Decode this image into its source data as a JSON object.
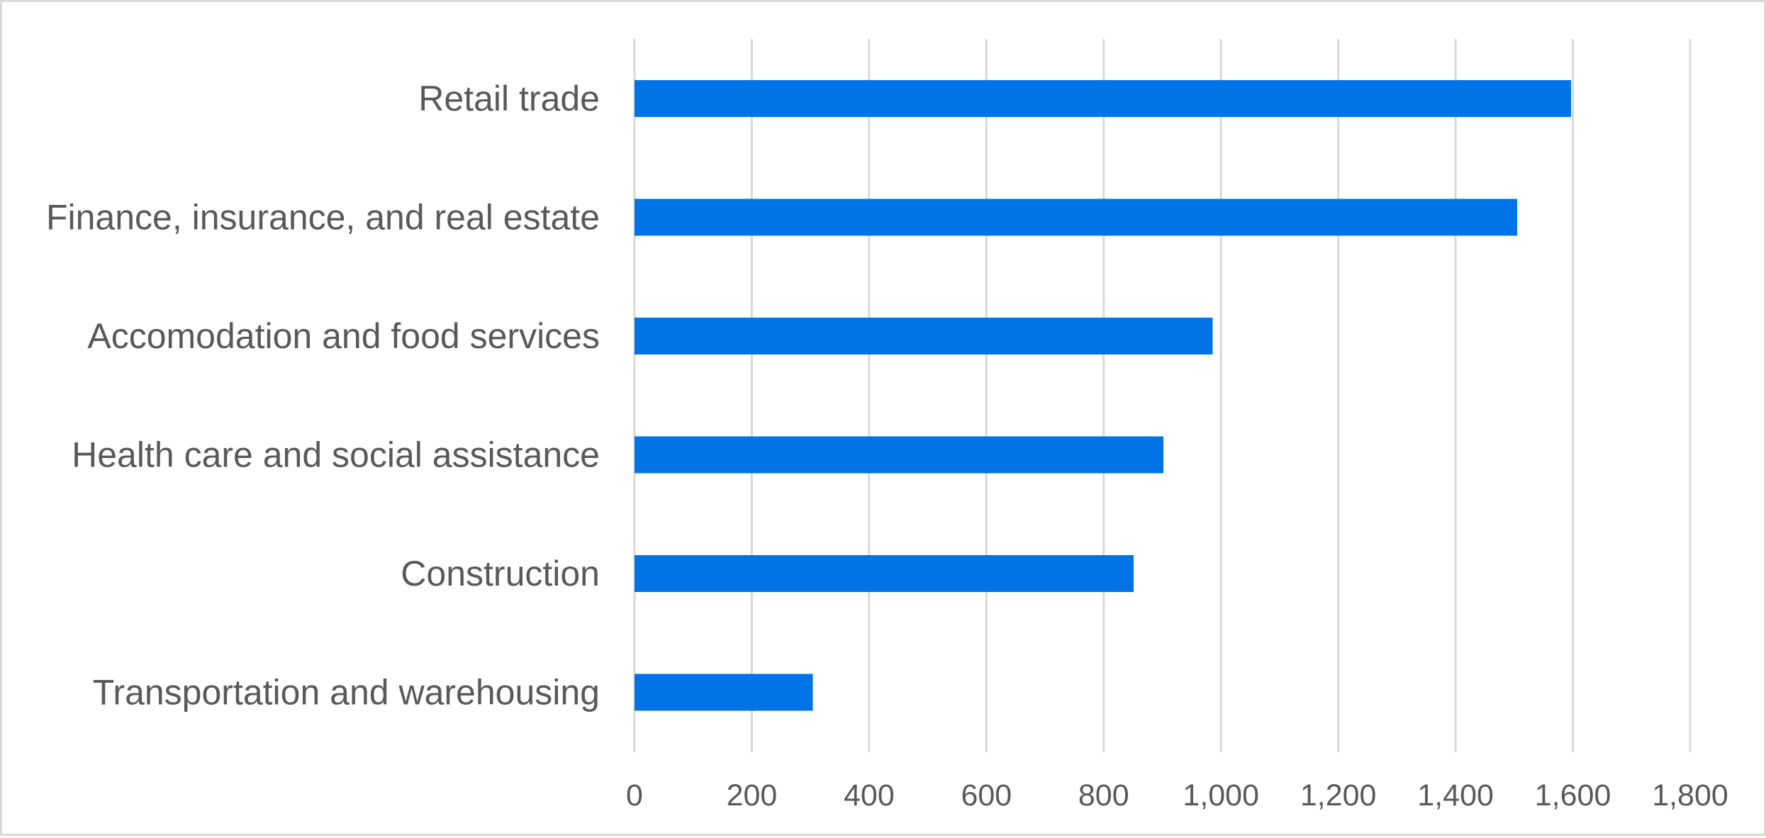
{
  "chart_data": {
    "type": "bar",
    "orientation": "horizontal",
    "categories": [
      "Retail trade",
      "Finance, insurance, and real estate",
      "Accomodation and food services",
      "Health care and social assistance",
      "Construction",
      "Transportation and warehousing"
    ],
    "values": [
      1597,
      1505,
      986,
      902,
      851,
      304
    ],
    "xlim": [
      0,
      1800
    ],
    "xticks": [
      0,
      200,
      400,
      600,
      800,
      1000,
      1200,
      1400,
      1600,
      1800
    ],
    "xtick_labels": [
      "0",
      "200",
      "400",
      "600",
      "800",
      "1,000",
      "1,200",
      "1,400",
      "1,600",
      "1,800"
    ],
    "grid": "vertical",
    "legend": "none",
    "bar_color": "#0073e6"
  }
}
